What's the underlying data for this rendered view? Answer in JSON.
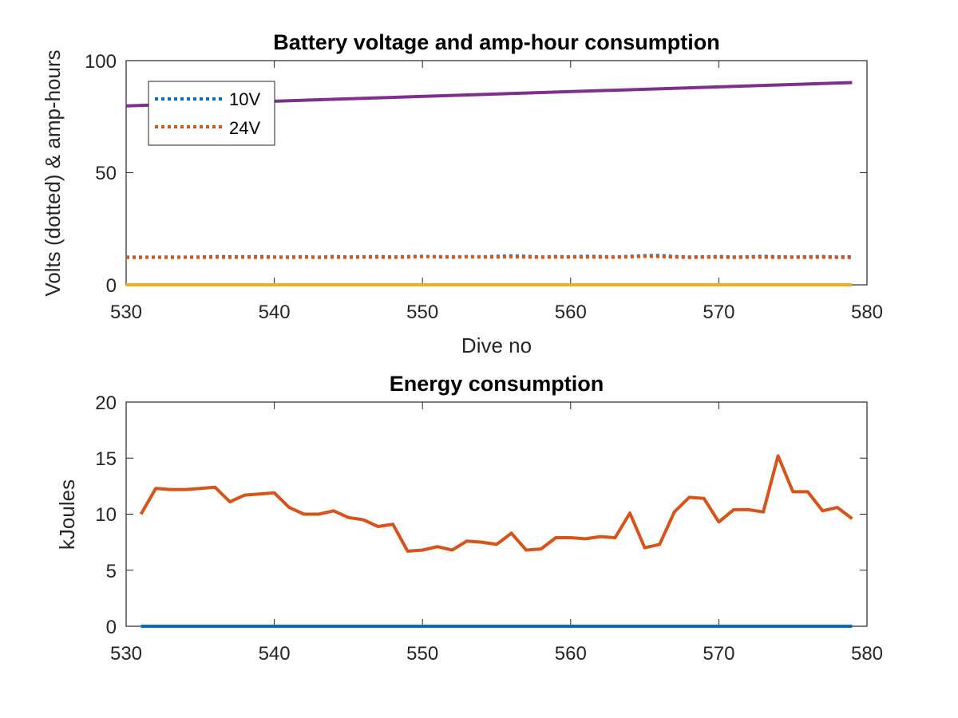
{
  "chart_data": [
    {
      "type": "line",
      "title": "Battery voltage and amp-hour consumption",
      "xlabel": "Dive no",
      "ylabel": "Volts (dotted) & amp-hours",
      "xlim": [
        530,
        580
      ],
      "ylim": [
        0,
        100
      ],
      "xticks": [
        "530",
        "540",
        "550",
        "560",
        "570",
        "580"
      ],
      "yticks": [
        "0",
        "50",
        "100"
      ],
      "legend": {
        "position": "top-left",
        "entries": [
          "10V",
          "24V"
        ]
      },
      "series": [
        {
          "name": "10V",
          "style": "dotted",
          "color": "#0072BD",
          "x": [
            530,
            531,
            532,
            533,
            534,
            535,
            536,
            537,
            538,
            539,
            540,
            541,
            542,
            543,
            544,
            545,
            546,
            547,
            548,
            549,
            550,
            551,
            552,
            553,
            554,
            555,
            556,
            557,
            558,
            559,
            560,
            561,
            562,
            563,
            564,
            565,
            566,
            567,
            568,
            569,
            570,
            571,
            572,
            573,
            574,
            575,
            576,
            577,
            578,
            579
          ],
          "y": [
            12.3,
            12.3,
            12.3,
            12.4,
            12.3,
            12.4,
            12.6,
            12.5,
            12.5,
            12.6,
            12.4,
            12.4,
            12.5,
            12.3,
            12.6,
            12.4,
            12.5,
            12.6,
            12.4,
            12.6,
            12.7,
            12.5,
            12.3,
            12.6,
            12.5,
            12.7,
            12.9,
            12.7,
            12.4,
            12.6,
            12.5,
            12.7,
            12.6,
            12.4,
            12.7,
            13.0,
            13.1,
            12.6,
            12.4,
            12.5,
            12.6,
            12.4,
            12.5,
            12.7,
            12.5,
            12.4,
            12.5,
            12.6,
            12.4,
            12.5
          ]
        },
        {
          "name": "24V",
          "style": "dotted",
          "color": "#D95319",
          "x": [
            530,
            531,
            532,
            533,
            534,
            535,
            536,
            537,
            538,
            539,
            540,
            541,
            542,
            543,
            544,
            545,
            546,
            547,
            548,
            549,
            550,
            551,
            552,
            553,
            554,
            555,
            556,
            557,
            558,
            559,
            560,
            561,
            562,
            563,
            564,
            565,
            566,
            567,
            568,
            569,
            570,
            571,
            572,
            573,
            574,
            575,
            576,
            577,
            578,
            579
          ],
          "y": [
            12.2,
            12.2,
            12.3,
            12.2,
            12.3,
            12.2,
            12.3,
            12.2,
            12.3,
            12.2,
            12.3,
            12.2,
            12.3,
            12.2,
            12.3,
            12.2,
            12.4,
            12.3,
            12.2,
            12.4,
            12.6,
            12.6,
            12.5,
            12.5,
            12.4,
            12.4,
            12.5,
            12.4,
            12.3,
            12.4,
            12.4,
            12.4,
            12.4,
            12.3,
            12.5,
            12.7,
            12.6,
            12.4,
            12.2,
            12.3,
            12.3,
            12.2,
            12.3,
            12.3,
            12.2,
            12.3,
            12.2,
            12.3,
            12.2,
            12.2
          ]
        },
        {
          "style": "solid",
          "color": "#EDB120",
          "x": [
            530,
            579
          ],
          "y": [
            0,
            0
          ]
        },
        {
          "style": "solid",
          "color": "#7E2F8E",
          "x": [
            530,
            579
          ],
          "y": [
            79.8,
            90.2
          ]
        }
      ]
    },
    {
      "type": "line",
      "title": "Energy consumption",
      "xlabel": "",
      "ylabel": "kJoules",
      "xlim": [
        530,
        580
      ],
      "ylim": [
        0,
        20
      ],
      "xticks": [
        "530",
        "540",
        "550",
        "560",
        "570",
        "580"
      ],
      "yticks": [
        "0",
        "5",
        "10",
        "15",
        "20"
      ],
      "series": [
        {
          "style": "solid",
          "color": "#0072BD",
          "x": [
            531,
            579
          ],
          "y": [
            0,
            0
          ]
        },
        {
          "style": "solid",
          "color": "#D95319",
          "x": [
            531,
            532,
            533,
            534,
            535,
            536,
            537,
            538,
            539,
            540,
            541,
            542,
            543,
            544,
            545,
            546,
            547,
            548,
            549,
            550,
            551,
            552,
            553,
            554,
            555,
            556,
            557,
            558,
            559,
            560,
            561,
            562,
            563,
            564,
            565,
            566,
            567,
            568,
            569,
            570,
            571,
            572,
            573,
            574,
            575,
            576,
            577,
            578,
            579
          ],
          "y": [
            10.0,
            12.3,
            12.2,
            12.2,
            12.3,
            12.4,
            11.1,
            11.7,
            11.8,
            11.9,
            10.6,
            10.0,
            10.0,
            10.3,
            9.7,
            9.5,
            8.9,
            9.1,
            6.7,
            6.8,
            7.1,
            6.8,
            7.6,
            7.5,
            7.3,
            8.3,
            6.8,
            6.9,
            7.9,
            7.9,
            7.8,
            8.0,
            7.9,
            10.1,
            7.0,
            7.3,
            10.2,
            11.5,
            11.4,
            9.3,
            10.4,
            10.4,
            10.2,
            15.2,
            12.0,
            12.0,
            10.3,
            10.6,
            9.6
          ]
        }
      ]
    }
  ]
}
